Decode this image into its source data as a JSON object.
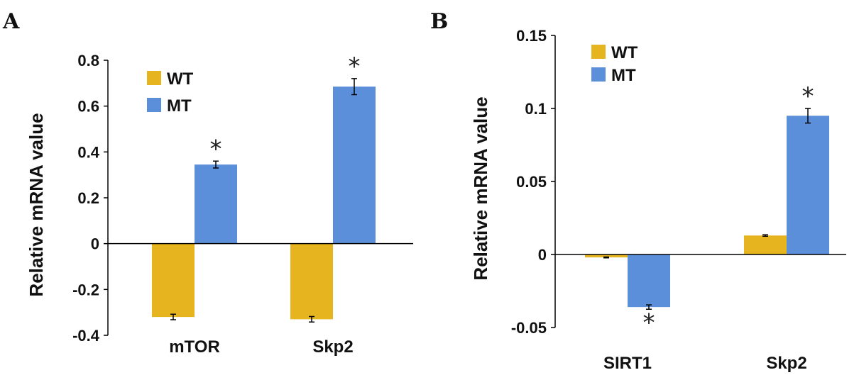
{
  "colors": {
    "WT": "#E6B41E",
    "MT": "#5B8FD9",
    "axis": "#000000",
    "error": "#000000"
  },
  "chart_data": [
    {
      "type": "bar",
      "panel": "A",
      "ylabel": "Relative mRNA value",
      "ylim": [
        -0.4,
        0.8
      ],
      "yticks": [
        -0.4,
        -0.2,
        0,
        0.2,
        0.4,
        0.6,
        0.8
      ],
      "ytick_labels": [
        "-0.4",
        "-0.2",
        "0",
        "0.2",
        "0.4",
        "0.6",
        "0.8"
      ],
      "categories": [
        "mTOR",
        "Skp2"
      ],
      "series": [
        {
          "name": "WT",
          "values": [
            -0.32,
            -0.33
          ],
          "errors": [
            0.012,
            0.012
          ]
        },
        {
          "name": "MT",
          "values": [
            0.345,
            0.685
          ],
          "errors": [
            0.015,
            0.035
          ]
        }
      ],
      "significance": [
        {
          "category": "mTOR",
          "series": "MT",
          "label": "*"
        },
        {
          "category": "Skp2",
          "series": "MT",
          "label": "*"
        }
      ],
      "legend": "top-left",
      "grid": false
    },
    {
      "type": "bar",
      "panel": "B",
      "ylabel": "Relative mRNA value",
      "ylim": [
        -0.05,
        0.15
      ],
      "yticks": [
        -0.05,
        0,
        0.05,
        0.1,
        0.15
      ],
      "ytick_labels": [
        "-0.05",
        "0",
        "0.05",
        "0.1",
        "0.15"
      ],
      "categories": [
        "SIRT1",
        "Skp2"
      ],
      "series": [
        {
          "name": "WT",
          "values": [
            -0.002,
            0.013
          ],
          "errors": [
            0.0003,
            0.0005
          ]
        },
        {
          "name": "MT",
          "values": [
            -0.036,
            0.095
          ],
          "errors": [
            0.0015,
            0.005
          ]
        }
      ],
      "significance": [
        {
          "category": "SIRT1",
          "series": "MT",
          "label": "*"
        },
        {
          "category": "Skp2",
          "series": "MT",
          "label": "*"
        }
      ],
      "legend": "top-left",
      "grid": false
    }
  ]
}
